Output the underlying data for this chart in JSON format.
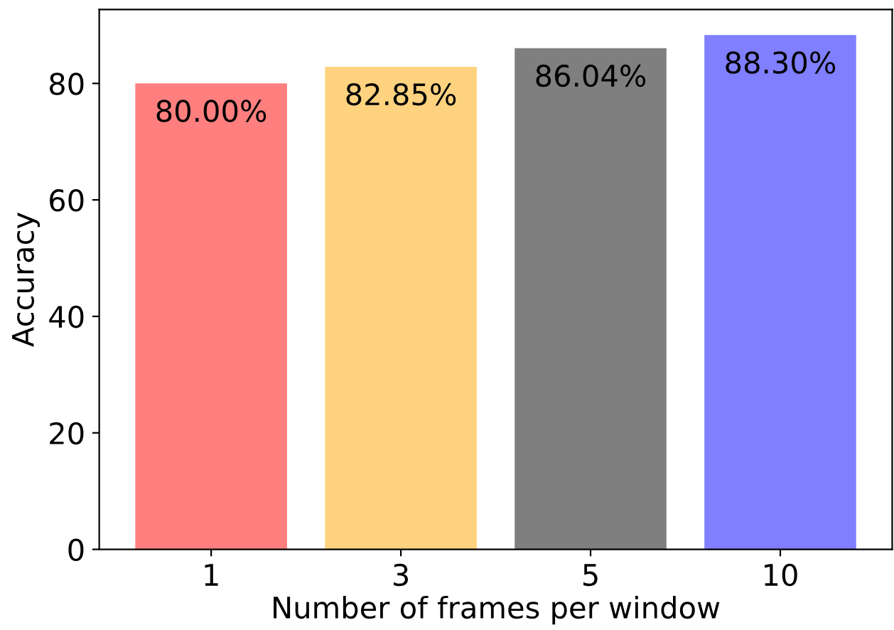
{
  "chart_data": {
    "type": "bar",
    "xlabel": "Number of frames per window",
    "ylabel": "Accuracy",
    "categories": [
      "1",
      "3",
      "5",
      "10"
    ],
    "values": [
      80.0,
      82.85,
      86.04,
      88.3
    ],
    "colors": [
      "#ff7f7f",
      "#ffd27f",
      "#7f7f7f",
      "#7f7fff"
    ],
    "value_labels": [
      "80.00%",
      "82.85%",
      "86.04%",
      "88.30%"
    ],
    "ylim": [
      0,
      92.7
    ],
    "yticks": [
      0,
      20,
      40,
      60,
      80
    ],
    "grid": false
  }
}
